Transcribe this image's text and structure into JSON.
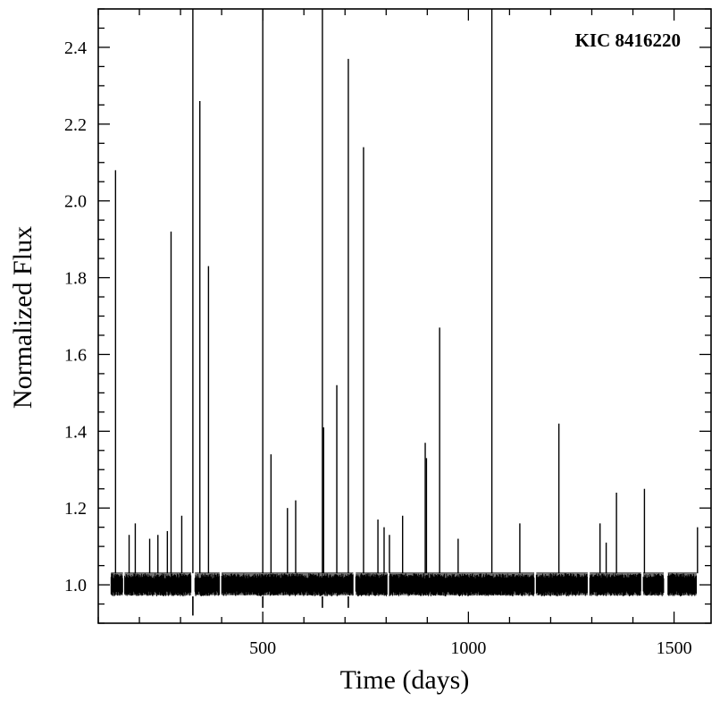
{
  "chart_data": {
    "type": "line",
    "xlabel": "Time (days)",
    "ylabel": "Normalized Flux",
    "annotation": "KIC 8416220",
    "xlim": [
      100,
      1590
    ],
    "ylim": [
      0.9,
      2.5
    ],
    "x_ticks": [
      500,
      1000,
      1500
    ],
    "y_ticks": [
      1.0,
      1.2,
      1.4,
      1.6,
      1.8,
      2.0,
      2.2,
      2.4
    ],
    "y_tick_labels": [
      "1.0",
      "1.2",
      "1.4",
      "1.6",
      "1.8",
      "2.0",
      "2.2",
      "2.4"
    ],
    "grid": false,
    "baseline": {
      "flux_center": 1.0,
      "flux_low": 0.97,
      "flux_high": 1.03,
      "segments": [
        [
          131,
          160
        ],
        [
          164,
          326
        ],
        [
          335,
          395
        ],
        [
          400,
          720
        ],
        [
          726,
          803
        ],
        [
          808,
          1160
        ],
        [
          1165,
          1290
        ],
        [
          1295,
          1420
        ],
        [
          1425,
          1475
        ],
        [
          1485,
          1555
        ]
      ]
    },
    "flares": [
      {
        "x": 142,
        "y": 2.08
      },
      {
        "x": 175,
        "y": 1.13
      },
      {
        "x": 190,
        "y": 1.16
      },
      {
        "x": 225,
        "y": 1.12
      },
      {
        "x": 245,
        "y": 1.13
      },
      {
        "x": 268,
        "y": 1.14
      },
      {
        "x": 277,
        "y": 1.92
      },
      {
        "x": 303,
        "y": 1.18
      },
      {
        "x": 330,
        "y": 2.5
      },
      {
        "x": 347,
        "y": 2.26
      },
      {
        "x": 368,
        "y": 1.83
      },
      {
        "x": 500,
        "y": 2.5
      },
      {
        "x": 520,
        "y": 1.34
      },
      {
        "x": 560,
        "y": 1.2
      },
      {
        "x": 580,
        "y": 1.22
      },
      {
        "x": 645,
        "y": 2.5
      },
      {
        "x": 648,
        "y": 1.41
      },
      {
        "x": 680,
        "y": 1.52
      },
      {
        "x": 708,
        "y": 2.37
      },
      {
        "x": 745,
        "y": 2.14
      },
      {
        "x": 780,
        "y": 1.17
      },
      {
        "x": 795,
        "y": 1.15
      },
      {
        "x": 808,
        "y": 1.13
      },
      {
        "x": 840,
        "y": 1.18
      },
      {
        "x": 895,
        "y": 1.37
      },
      {
        "x": 898,
        "y": 1.33
      },
      {
        "x": 930,
        "y": 1.67
      },
      {
        "x": 975,
        "y": 1.12
      },
      {
        "x": 1057,
        "y": 2.5
      },
      {
        "x": 1125,
        "y": 1.16
      },
      {
        "x": 1220,
        "y": 1.42
      },
      {
        "x": 1320,
        "y": 1.16
      },
      {
        "x": 1335,
        "y": 1.11
      },
      {
        "x": 1360,
        "y": 1.24
      },
      {
        "x": 1428,
        "y": 1.25
      },
      {
        "x": 1557,
        "y": 1.15
      }
    ],
    "dips": [
      {
        "x": 330,
        "y": 0.92
      },
      {
        "x": 500,
        "y": 0.94
      },
      {
        "x": 645,
        "y": 0.94
      },
      {
        "x": 708,
        "y": 0.94
      }
    ]
  }
}
